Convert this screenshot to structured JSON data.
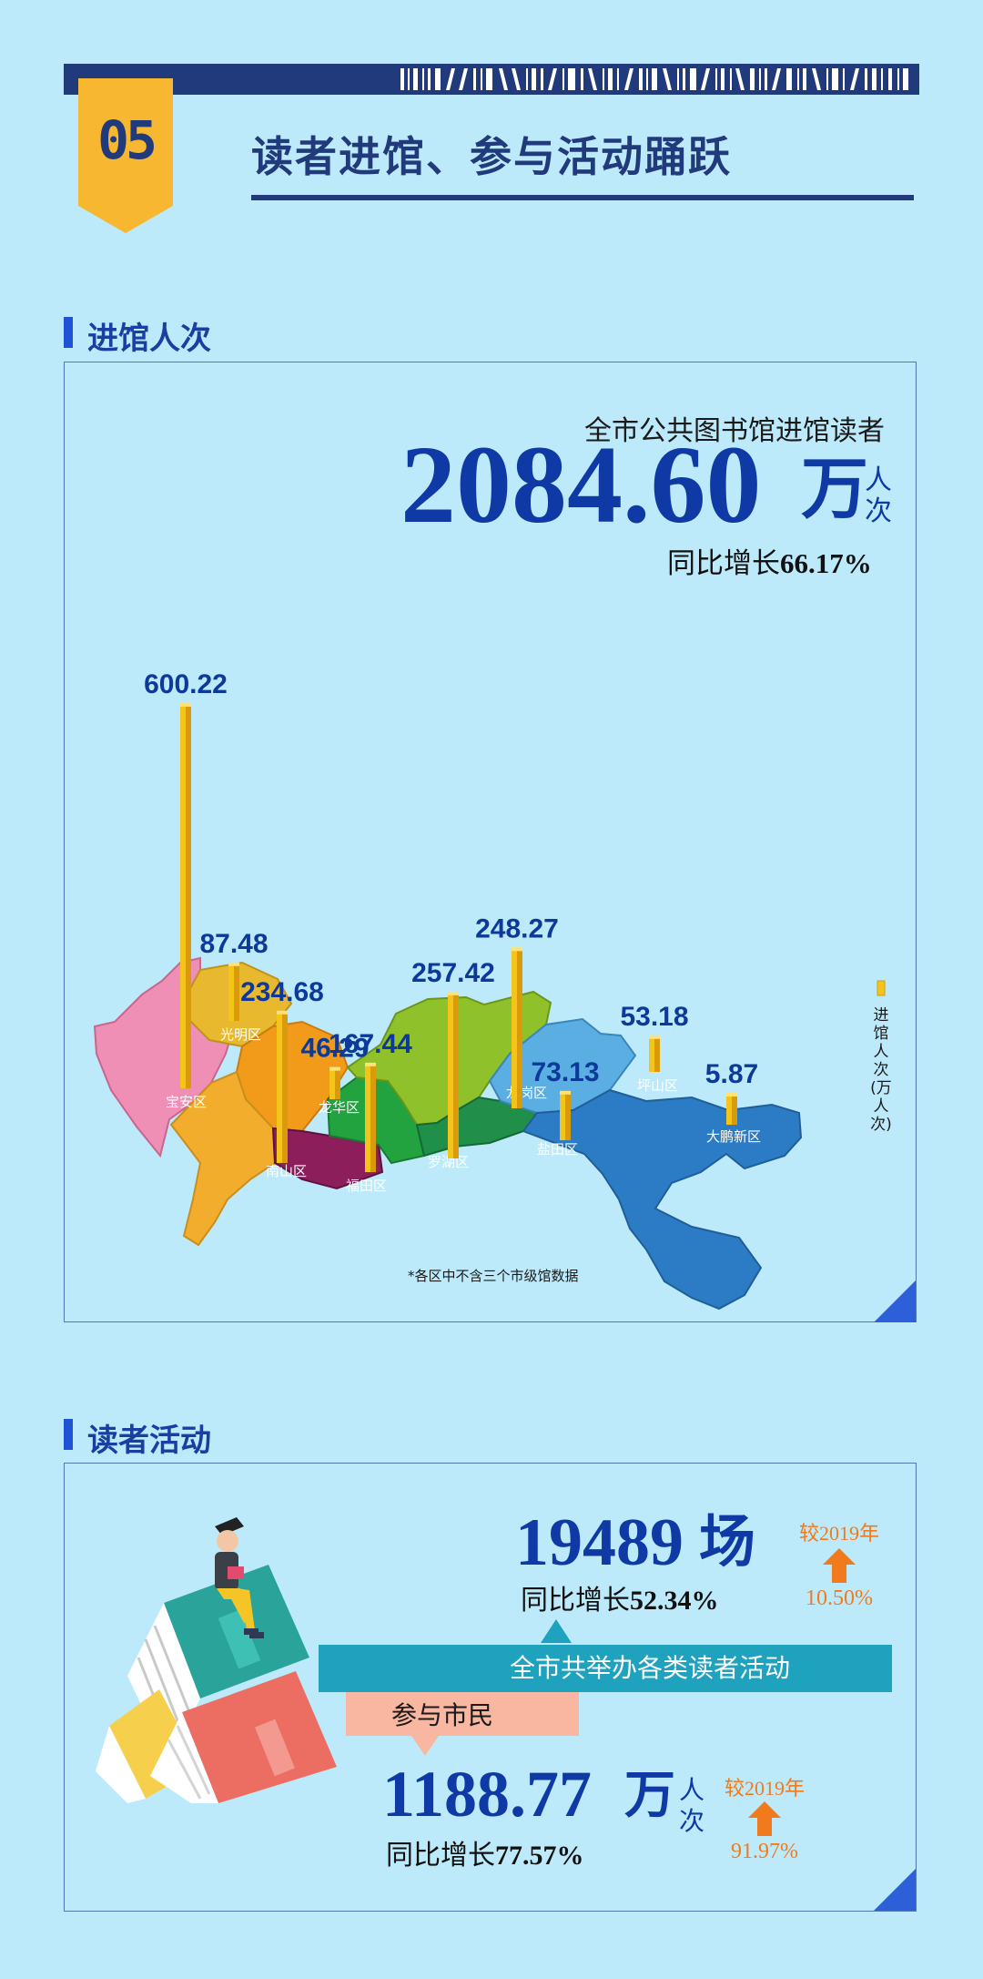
{
  "header": {
    "section_number": "05",
    "title": "读者进馆、参与活动踊跃"
  },
  "visits_section": {
    "heading": "进馆人次",
    "subtitle": "全市公共图书馆进馆读者",
    "total_value": "2084.60",
    "total_unit_wan": "万",
    "total_unit_ren": "人",
    "total_unit_ci": "次",
    "growth_label": "同比增长",
    "growth_value": "66.17%",
    "legend_label": "进馆人次(万人次)",
    "footnote": "*各区中不含三个市级馆数据"
  },
  "chart_data": {
    "type": "bar",
    "categories": [
      "宝安区",
      "光明区",
      "南山区",
      "龙华区",
      "福田区",
      "罗湖区",
      "龙岗区",
      "盐田区",
      "坪山区",
      "大鹏新区"
    ],
    "values": [
      600.22,
      87.48,
      234.68,
      46.29,
      167.44,
      257.42,
      248.27,
      73.13,
      53.18,
      5.87
    ],
    "value_labels": [
      "600.22",
      "87.48",
      "234.68",
      "46.29",
      "167.44",
      "257.42",
      "248.27",
      "73.13",
      "53.18",
      "5.87"
    ],
    "legend": "进馆人次(万人次)",
    "colors": {
      "bar": "#f5c418",
      "宝安区": "#ef8fb6",
      "光明区": "#e8b92e",
      "南山区": "#f3ad2c",
      "龙华区": "#f29a19",
      "福田区": "#8c1e5c",
      "罗湖区": "#23a33f",
      "龙岗区": "#8fc12a",
      "盐田区": "#1f8f49",
      "坪山区": "#5aaee2",
      "大鹏新区": "#2b7cc4"
    }
  },
  "activities_section": {
    "heading": "读者活动",
    "events_value": "19489",
    "events_unit": "场",
    "events_growth_label": "同比增长",
    "events_growth_value": "52.34%",
    "events_cmp_label": "较2019年",
    "events_cmp_value": "10.50%",
    "banner_text": "全市共举办各类读者活动",
    "participants_label": "参与市民",
    "participants_value": "1188.77",
    "participants_unit_wan": "万",
    "participants_unit_ren": "人",
    "participants_unit_ci": "次",
    "participants_growth_label": "同比增长",
    "participants_growth_value": "77.57%",
    "participants_cmp_label": "较2019年",
    "participants_cmp_value": "91.97%"
  }
}
